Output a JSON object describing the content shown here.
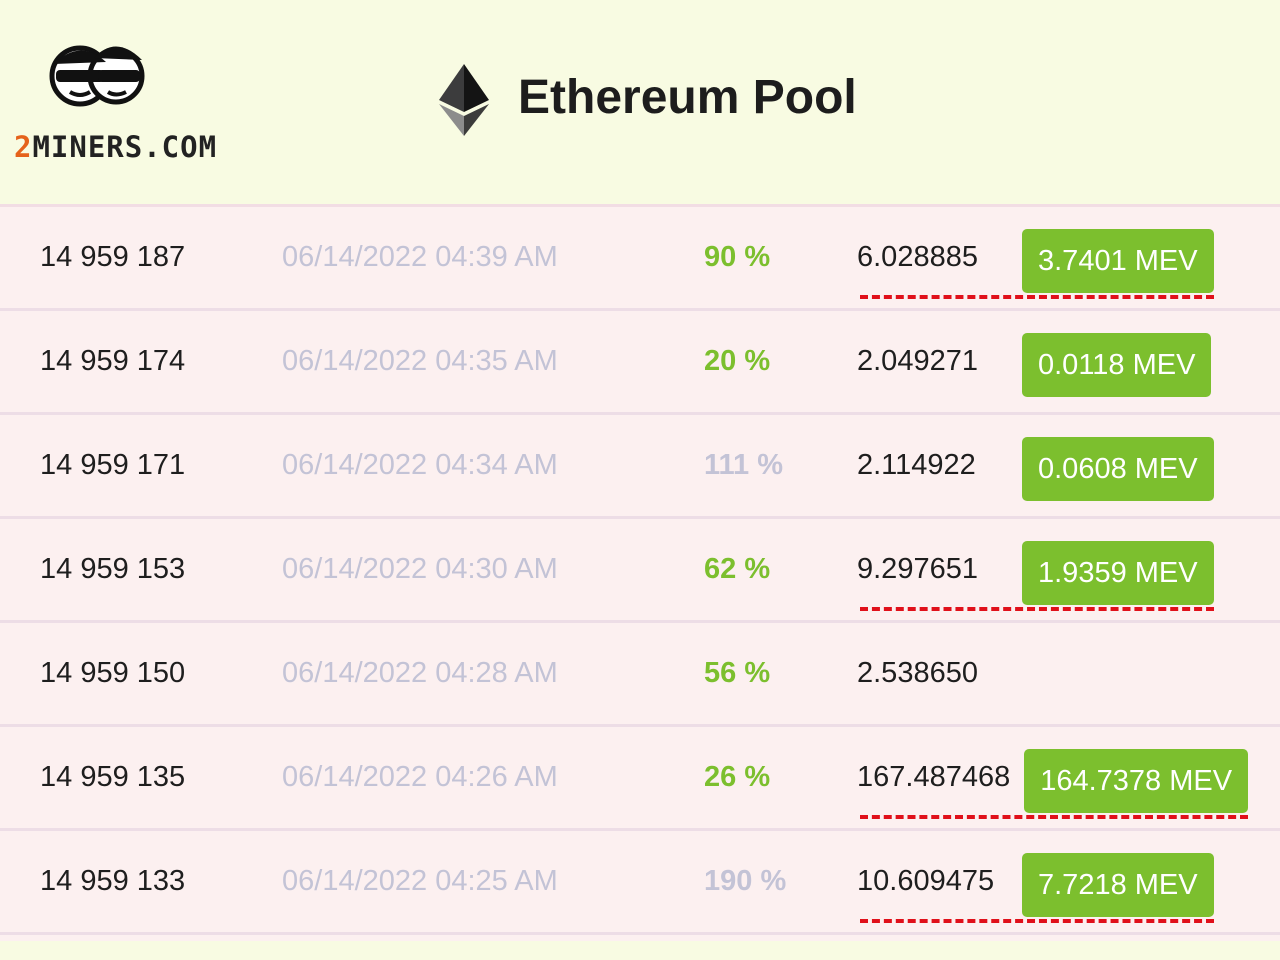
{
  "header": {
    "logo": {
      "digit": "2",
      "text": "MINERS.COM"
    },
    "title": "Ethereum Pool"
  },
  "table": {
    "rows": [
      {
        "block": "14 959 187",
        "date": "06/14/2022 04:39 AM",
        "luck": "90 %",
        "luck_color": "#7cbf2e",
        "reward": "6.028885",
        "mev": "3.7401 MEV",
        "underline": true
      },
      {
        "block": "14 959 174",
        "date": "06/14/2022 04:35 AM",
        "luck": "20 %",
        "luck_color": "#7cbf2e",
        "reward": "2.049271",
        "mev": "0.0118 MEV",
        "underline": false
      },
      {
        "block": "14 959 171",
        "date": "06/14/2022 04:34 AM",
        "luck": "111 %",
        "luck_color": "#c3c3d6",
        "reward": "2.114922",
        "mev": "0.0608 MEV",
        "underline": false
      },
      {
        "block": "14 959 153",
        "date": "06/14/2022 04:30 AM",
        "luck": "62 %",
        "luck_color": "#7cbf2e",
        "reward": "9.297651",
        "mev": "1.9359 MEV",
        "underline": true
      },
      {
        "block": "14 959 150",
        "date": "06/14/2022 04:28 AM",
        "luck": "56 %",
        "luck_color": "#7cbf2e",
        "reward": "2.538650",
        "underline": false
      },
      {
        "block": "14 959 135",
        "date": "06/14/2022 04:26 AM",
        "luck": "26 %",
        "luck_color": "#7cbf2e",
        "reward": "167.487468",
        "mev": "164.7378 MEV",
        "underline": true
      },
      {
        "block": "14 959 133",
        "date": "06/14/2022 04:25 AM",
        "luck": "190 %",
        "luck_color": "#c3c3d6",
        "reward": "10.609475",
        "mev": "7.7218 MEV",
        "underline": true
      }
    ]
  }
}
